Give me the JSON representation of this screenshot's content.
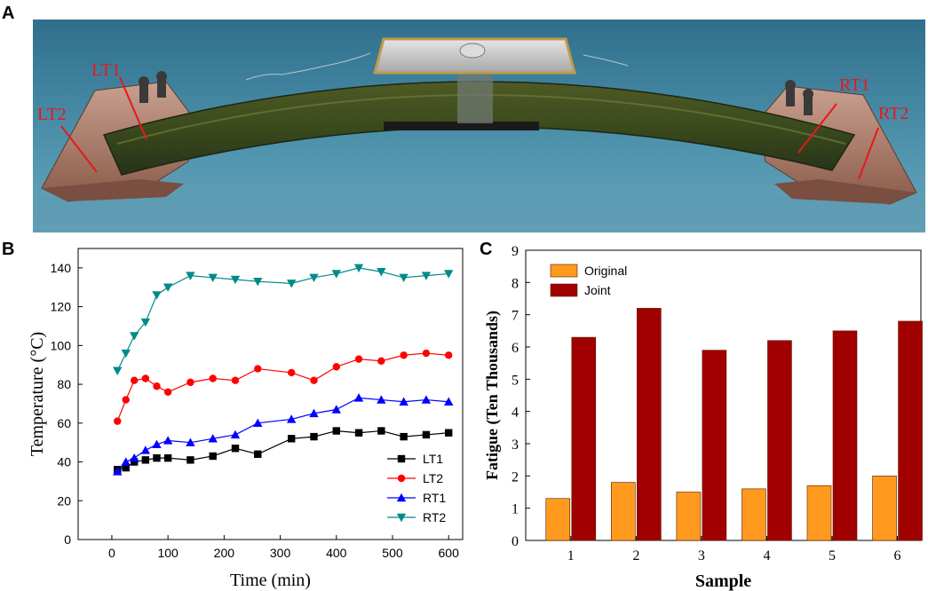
{
  "panels": {
    "a": "A",
    "b": "B",
    "c": "C"
  },
  "photo": {
    "labels": {
      "lt1": "LT1",
      "lt2": "LT2",
      "rt1": "RT1",
      "rt2": "RT2"
    },
    "label_color": "#e8171b"
  },
  "chart_data": [
    {
      "id": "B",
      "type": "line",
      "xlabel": "Time (min)",
      "ylabel": "Temperature (°C)",
      "xlim": [
        -60,
        625
      ],
      "ylim": [
        0,
        150
      ],
      "xticks": [
        0,
        100,
        200,
        300,
        400,
        500,
        600
      ],
      "yticks": [
        0,
        20,
        40,
        60,
        80,
        100,
        120,
        140
      ],
      "legend_position": "bottom-right",
      "series": [
        {
          "name": "LT1",
          "color": "#000000",
          "marker": "square",
          "x": [
            10,
            25,
            40,
            60,
            80,
            100,
            140,
            180,
            220,
            260,
            320,
            360,
            400,
            440,
            480,
            520,
            560,
            600
          ],
          "y": [
            36,
            37,
            40,
            41,
            42,
            42,
            41,
            43,
            47,
            44,
            52,
            53,
            56,
            55,
            56,
            53,
            54,
            55
          ]
        },
        {
          "name": "LT2",
          "color": "#ff0000",
          "marker": "circle",
          "x": [
            10,
            25,
            40,
            60,
            80,
            100,
            140,
            180,
            220,
            260,
            320,
            360,
            400,
            440,
            480,
            520,
            560,
            600
          ],
          "y": [
            61,
            72,
            82,
            83,
            79,
            76,
            81,
            83,
            82,
            88,
            86,
            82,
            89,
            93,
            92,
            95,
            96,
            95
          ]
        },
        {
          "name": "RT1",
          "color": "#0000ff",
          "marker": "triangle-up",
          "x": [
            10,
            25,
            40,
            60,
            80,
            100,
            140,
            180,
            220,
            260,
            320,
            360,
            400,
            440,
            480,
            520,
            560,
            600
          ],
          "y": [
            35,
            40,
            42,
            46,
            49,
            51,
            50,
            52,
            54,
            60,
            62,
            65,
            67,
            73,
            72,
            71,
            72,
            71
          ]
        },
        {
          "name": "RT2",
          "color": "#008b8b",
          "marker": "triangle-down",
          "x": [
            10,
            25,
            40,
            60,
            80,
            100,
            140,
            180,
            220,
            260,
            320,
            360,
            400,
            440,
            480,
            520,
            560,
            600
          ],
          "y": [
            87,
            96,
            105,
            112,
            126,
            130,
            136,
            135,
            134,
            133,
            132,
            135,
            137,
            140,
            138,
            135,
            136,
            137
          ]
        }
      ]
    },
    {
      "id": "C",
      "type": "bar",
      "xlabel": "Sample",
      "ylabel": "Fatigue (Ten Thousands)",
      "categories": [
        "1",
        "2",
        "3",
        "4",
        "5",
        "6"
      ],
      "ylim": [
        0,
        9
      ],
      "yticks": [
        0,
        1,
        2,
        3,
        4,
        5,
        6,
        7,
        8,
        9
      ],
      "legend_position": "top-left",
      "series": [
        {
          "name": "Original",
          "color": "#ff9a1f",
          "values": [
            1.3,
            1.8,
            1.5,
            1.6,
            1.7,
            2.0
          ]
        },
        {
          "name": "Joint",
          "color": "#a00000",
          "values": [
            6.3,
            7.2,
            5.9,
            6.2,
            6.5,
            6.8
          ]
        }
      ]
    }
  ]
}
